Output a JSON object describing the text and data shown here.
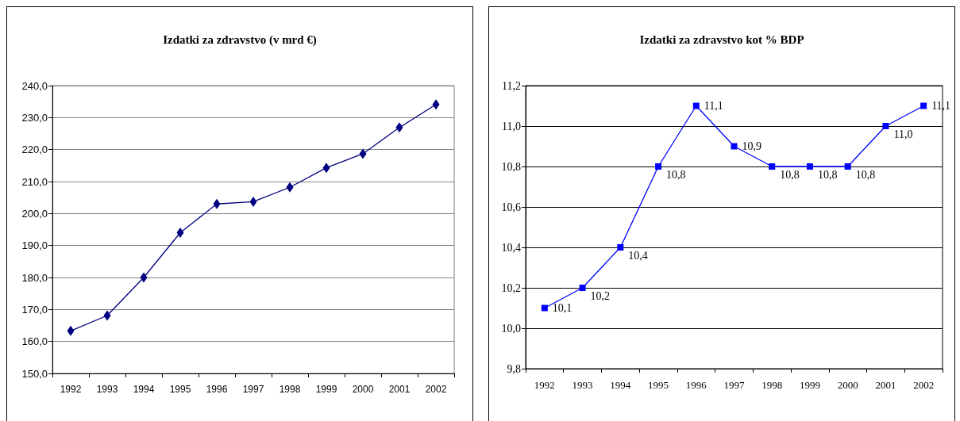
{
  "chart_data": [
    {
      "type": "line",
      "title": "Izdatki za zdravstvo (v mrd €)",
      "categories": [
        "1992",
        "1993",
        "1994",
        "1995",
        "1996",
        "1997",
        "1998",
        "1999",
        "2000",
        "2001",
        "2002"
      ],
      "values": [
        163.3,
        168.1,
        180.0,
        194.0,
        203.0,
        203.7,
        208.2,
        214.3,
        218.7,
        226.9,
        234.1
      ],
      "color": "#000080",
      "ylim": [
        150,
        240
      ],
      "yticks": [
        {
          "value": 150,
          "label": "150,0"
        },
        {
          "value": 160,
          "label": "160,0"
        },
        {
          "value": 170,
          "label": "170,0"
        },
        {
          "value": 180,
          "label": "180,0"
        },
        {
          "value": 190,
          "label": "190,0"
        },
        {
          "value": 200,
          "label": "200,0"
        },
        {
          "value": 210,
          "label": "210,0"
        },
        {
          "value": 220,
          "label": "220,0"
        },
        {
          "value": 230,
          "label": "230,0"
        },
        {
          "value": 240,
          "label": "240,0"
        }
      ],
      "grid": "y",
      "marker": "diamond",
      "line_style": "solid"
    },
    {
      "type": "line",
      "title": "Izdatki za zdravstvo kot % BDP",
      "categories": [
        "1992",
        "1993",
        "1994",
        "1995",
        "1996",
        "1997",
        "1998",
        "1999",
        "2000",
        "2001",
        "2002"
      ],
      "values": [
        10.1,
        10.2,
        10.4,
        10.8,
        11.1,
        10.9,
        10.8,
        10.8,
        10.8,
        11.0,
        11.1
      ],
      "color": "#0000ff",
      "value_labels": [
        "10,1",
        "10,2",
        "10,4",
        "10,8",
        "11,1",
        "10,9",
        "10,8",
        "10,8",
        "10,8",
        "11,0",
        "11,1"
      ],
      "ylim": [
        9.8,
        11.2
      ],
      "yticks": [
        {
          "value": 9.8,
          "label": "9,8"
        },
        {
          "value": 10.0,
          "label": "10,0"
        },
        {
          "value": 10.2,
          "label": "10,2"
        },
        {
          "value": 10.4,
          "label": "10,4"
        },
        {
          "value": 10.6,
          "label": "10,6"
        },
        {
          "value": 10.8,
          "label": "10,8"
        },
        {
          "value": 11.0,
          "label": "11,0"
        },
        {
          "value": 11.2,
          "label": "11,2"
        }
      ],
      "grid": "y",
      "marker": "square",
      "line_style": "solid"
    }
  ]
}
